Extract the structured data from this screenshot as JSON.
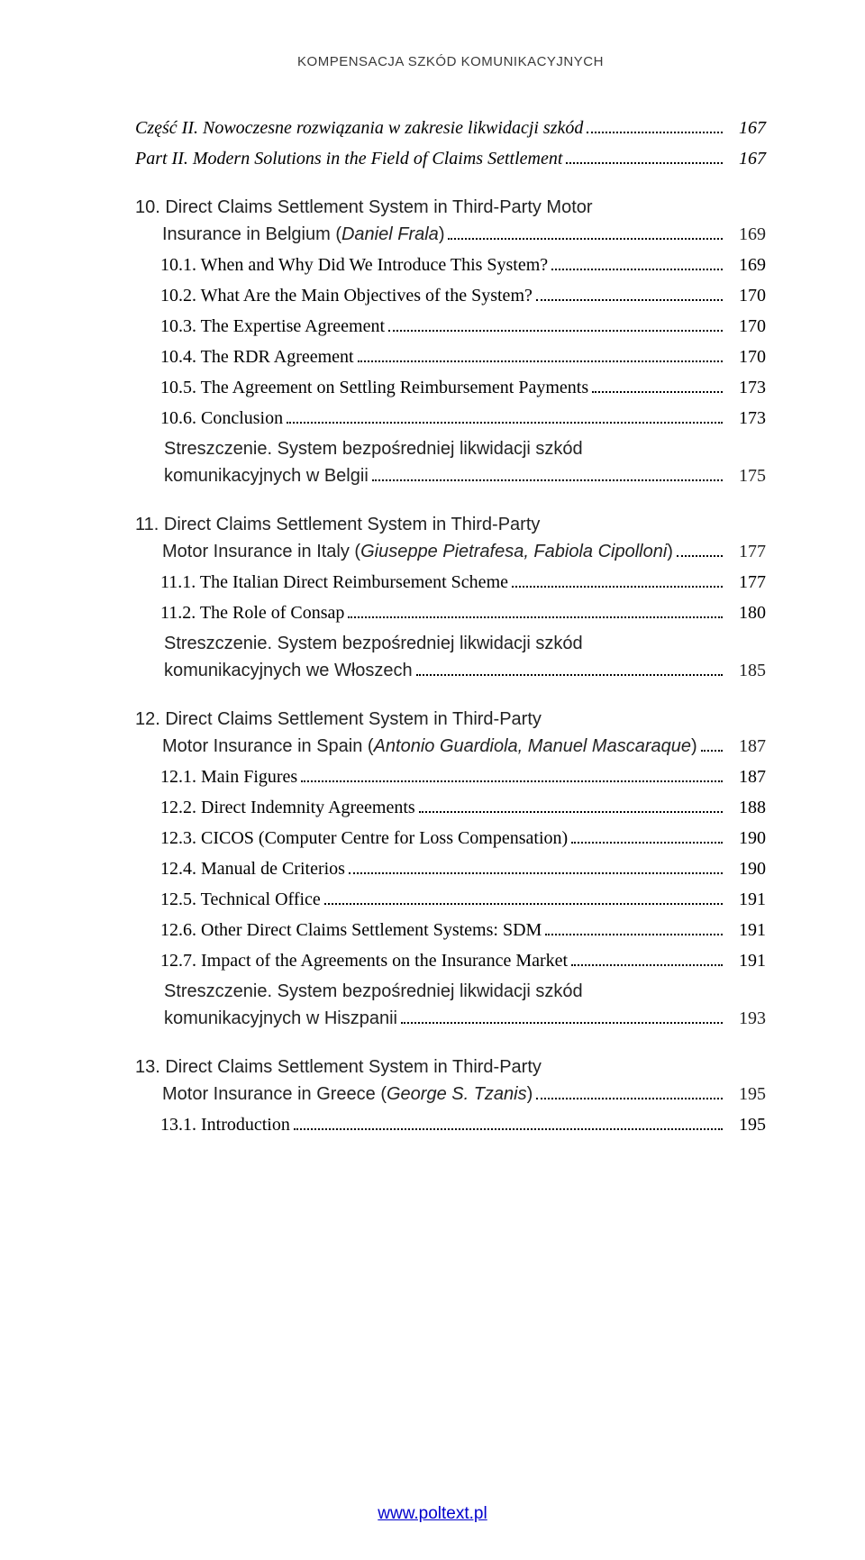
{
  "running_header": "KOMPENSACJA SZKÓD KOMUNIKACYJNYCH",
  "part": {
    "line1_label": "Część II. Nowoczesne rozwiązania w zakresie likwidacji szkód",
    "line1_page": "167",
    "line2_label": "Part II. Modern Solutions in the Field of Claims Settlement",
    "line2_page": "167"
  },
  "ch10": {
    "line1": "10. Direct Claims Settlement System in Third-Party Motor",
    "line2_label_pre": "Insurance in Belgium (",
    "line2_authors": "Daniel Frala",
    "line2_label_post": ")",
    "line2_page": "169",
    "subs": [
      {
        "label": "10.1. When and Why Did We Introduce This System?",
        "page": "169"
      },
      {
        "label": "10.2. What Are the Main Objectives of the System?",
        "page": "170"
      },
      {
        "label": "10.3. The Expertise Agreement",
        "page": "170"
      },
      {
        "label": "10.4. The RDR Agreement",
        "page": "170"
      },
      {
        "label": "10.5. The Agreement on Settling Reimbursement Payments",
        "page": "173"
      },
      {
        "label": "10.6. Conclusion",
        "page": "173"
      }
    ],
    "strez_lead": "Streszczenie.",
    "strez_line1_rest": " System bezpośredniej likwidacji szkód",
    "strez_line2_label": "komunikacyjnych w Belgii",
    "strez_page": "175"
  },
  "ch11": {
    "line1": "11. Direct Claims Settlement System in Third-Party",
    "line2_label_pre": "Motor Insurance in Italy (",
    "line2_authors": "Giuseppe Pietrafesa, Fabiola Cipolloni",
    "line2_label_post": ")",
    "line2_page": "177",
    "subs": [
      {
        "label": "11.1. The Italian Direct Reimbursement Scheme",
        "page": "177"
      },
      {
        "label": "11.2. The Role of Consap",
        "page": "180"
      }
    ],
    "strez_lead": "Streszczenie.",
    "strez_line1_rest": " System bezpośredniej likwidacji szkód",
    "strez_line2_label": "komunikacyjnych we Włoszech",
    "strez_page": "185"
  },
  "ch12": {
    "line1": "12. Direct Claims Settlement System in Third-Party",
    "line2_label_pre": "Motor Insurance in Spain (",
    "line2_authors": "Antonio Guardiola, Manuel Mascaraque",
    "line2_label_post": ")",
    "line2_page": "187",
    "subs": [
      {
        "label": "12.1. Main Figures",
        "page": "187"
      },
      {
        "label": "12.2. Direct Indemnity Agreements",
        "page": "188"
      },
      {
        "label": "12.3. CICOS (Computer Centre for Loss Compensation)",
        "page": "190"
      },
      {
        "label": "12.4. Manual de Criterios",
        "page": "190"
      },
      {
        "label": "12.5. Technical Office",
        "page": "191"
      },
      {
        "label": "12.6. Other Direct Claims Settlement Systems: SDM",
        "page": "191"
      },
      {
        "label": "12.7. Impact of the Agreements on the Insurance Market",
        "page": "191"
      }
    ],
    "strez_lead": "Streszczenie.",
    "strez_line1_rest": " System bezpośredniej likwidacji szkód",
    "strez_line2_label": "komunikacyjnych w Hiszpanii",
    "strez_page": "193"
  },
  "ch13": {
    "line1": "13. Direct Claims Settlement System in Third-Party",
    "line2_label_pre": "Motor Insurance in Greece (",
    "line2_authors": "George S. Tzanis",
    "line2_label_post": ")",
    "line2_page": "195",
    "subs": [
      {
        "label": "13.1. Introduction",
        "page": "195"
      }
    ]
  },
  "footer_link": "www.poltext.pl"
}
